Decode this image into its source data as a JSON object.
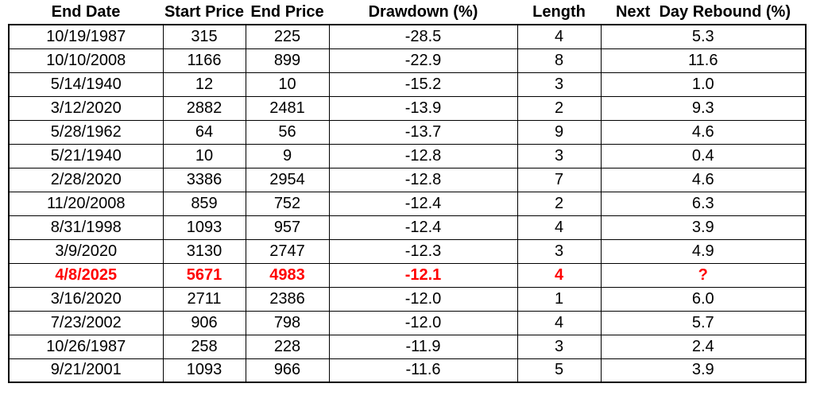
{
  "colors": {
    "text": "#000000",
    "border": "#000000",
    "background": "#FFFFFF",
    "highlight_text": "#FF0000"
  },
  "chart_data": {
    "type": "table",
    "title": "",
    "columns": [
      "End Date",
      "Start Price",
      "End Price",
      "Drawdown (%)",
      "Length",
      "Next  Day Rebound (%)"
    ],
    "rows": [
      [
        "10/19/1987",
        "315",
        "225",
        "-28.5",
        "4",
        "5.3"
      ],
      [
        "10/10/2008",
        "1166",
        "899",
        "-22.9",
        "8",
        "11.6"
      ],
      [
        "5/14/1940",
        "12",
        "10",
        "-15.2",
        "3",
        "1.0"
      ],
      [
        "3/12/2020",
        "2882",
        "2481",
        "-13.9",
        "2",
        "9.3"
      ],
      [
        "5/28/1962",
        "64",
        "56",
        "-13.7",
        "9",
        "4.6"
      ],
      [
        "5/21/1940",
        "10",
        "9",
        "-12.8",
        "3",
        "0.4"
      ],
      [
        "2/28/2020",
        "3386",
        "2954",
        "-12.8",
        "7",
        "4.6"
      ],
      [
        "11/20/2008",
        "859",
        "752",
        "-12.4",
        "2",
        "6.3"
      ],
      [
        "8/31/1998",
        "1093",
        "957",
        "-12.4",
        "4",
        "3.9"
      ],
      [
        "3/9/2020",
        "3130",
        "2747",
        "-12.3",
        "3",
        "4.9"
      ],
      [
        "4/8/2025",
        "5671",
        "4983",
        "-12.1",
        "4",
        "?"
      ],
      [
        "3/16/2020",
        "2711",
        "2386",
        "-12.0",
        "1",
        "6.0"
      ],
      [
        "7/23/2002",
        "906",
        "798",
        "-12.0",
        "4",
        "5.7"
      ],
      [
        "10/26/1987",
        "258",
        "228",
        "-11.9",
        "3",
        "2.4"
      ],
      [
        "9/21/2001",
        "1093",
        "966",
        "-11.6",
        "5",
        "3.9"
      ]
    ],
    "highlighted_row_index": 10,
    "highlighted_row_note": "rendered in bold red",
    "grid": true,
    "legend_position": "none"
  }
}
